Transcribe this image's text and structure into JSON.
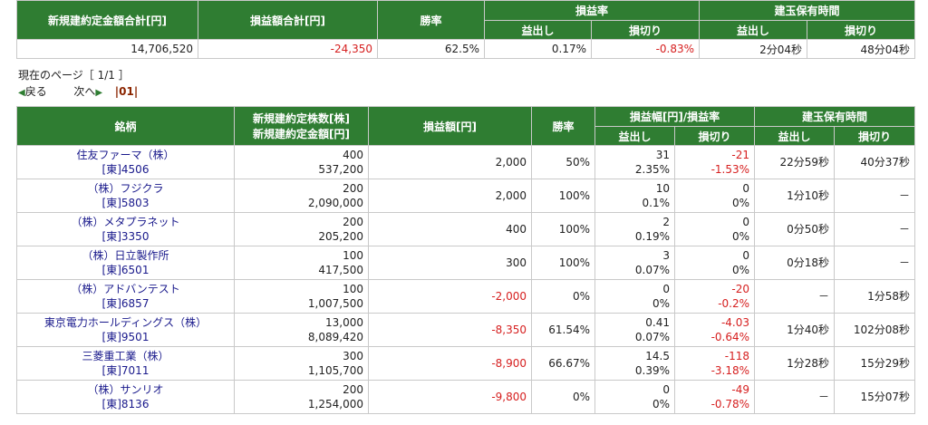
{
  "summary": {
    "headers": {
      "total_amount": "新規建約定金額合計[円]",
      "total_pl": "損益額合計[円]",
      "win_rate": "勝率",
      "pl_rate": "損益率",
      "hold_time": "建玉保有時間",
      "profit": "益出し",
      "loss": "損切り"
    },
    "values": {
      "total_amount": "14,706,520",
      "total_pl": "-24,350",
      "win_rate": "62.5%",
      "profit_rate": "0.17%",
      "loss_rate": "-0.83%",
      "profit_time": "2分04秒",
      "loss_time": "48分04秒"
    }
  },
  "pager": {
    "current_label": "現在のページ［ 1/1 ］",
    "prev": "戻る",
    "next": "次へ",
    "pages": "|01|"
  },
  "table": {
    "headers": {
      "stock": "銘柄",
      "qty": "新規建約定株数[株]",
      "amount": "新規建約定金額[円]",
      "pl": "損益額[円]",
      "win_rate": "勝率",
      "pl_range": "損益幅[円]/損益率",
      "hold_time": "建玉保有時間",
      "profit": "益出し",
      "loss": "損切り"
    },
    "rows": [
      {
        "name": "住友ファーマ（株）",
        "code": "[東]4506",
        "qty": "400",
        "amount": "537,200",
        "pl": "2,000",
        "pl_neg": false,
        "win": "50%",
        "profit_w": "31",
        "profit_r": "2.35%",
        "loss_w": "-21",
        "loss_r": "-1.53%",
        "loss_neg": true,
        "ptime": "22分59秒",
        "ltime": "40分37秒"
      },
      {
        "name": "（株）フジクラ",
        "code": "[東]5803",
        "qty": "200",
        "amount": "2,090,000",
        "pl": "2,000",
        "pl_neg": false,
        "win": "100%",
        "profit_w": "10",
        "profit_r": "0.1%",
        "loss_w": "0",
        "loss_r": "0%",
        "loss_neg": false,
        "ptime": "1分10秒",
        "ltime": "－"
      },
      {
        "name": "（株）メタプラネット",
        "code": "[東]3350",
        "qty": "200",
        "amount": "205,200",
        "pl": "400",
        "pl_neg": false,
        "win": "100%",
        "profit_w": "2",
        "profit_r": "0.19%",
        "loss_w": "0",
        "loss_r": "0%",
        "loss_neg": false,
        "ptime": "0分50秒",
        "ltime": "－"
      },
      {
        "name": "（株）日立製作所",
        "code": "[東]6501",
        "qty": "100",
        "amount": "417,500",
        "pl": "300",
        "pl_neg": false,
        "win": "100%",
        "profit_w": "3",
        "profit_r": "0.07%",
        "loss_w": "0",
        "loss_r": "0%",
        "loss_neg": false,
        "ptime": "0分18秒",
        "ltime": "－"
      },
      {
        "name": "（株）アドバンテスト",
        "code": "[東]6857",
        "qty": "100",
        "amount": "1,007,500",
        "pl": "-2,000",
        "pl_neg": true,
        "win": "0%",
        "profit_w": "0",
        "profit_r": "0%",
        "loss_w": "-20",
        "loss_r": "-0.2%",
        "loss_neg": true,
        "ptime": "－",
        "ltime": "1分58秒"
      },
      {
        "name": "東京電力ホールディングス（株）",
        "code": "[東]9501",
        "qty": "13,000",
        "amount": "8,089,420",
        "pl": "-8,350",
        "pl_neg": true,
        "win": "61.54%",
        "profit_w": "0.41",
        "profit_r": "0.07%",
        "loss_w": "-4.03",
        "loss_r": "-0.64%",
        "loss_neg": true,
        "ptime": "1分40秒",
        "ltime": "102分08秒"
      },
      {
        "name": "三菱重工業（株）",
        "code": "[東]7011",
        "qty": "300",
        "amount": "1,105,700",
        "pl": "-8,900",
        "pl_neg": true,
        "win": "66.67%",
        "profit_w": "14.5",
        "profit_r": "0.39%",
        "loss_w": "-118",
        "loss_r": "-3.18%",
        "loss_neg": true,
        "ptime": "1分28秒",
        "ltime": "15分29秒"
      },
      {
        "name": "（株）サンリオ",
        "code": "[東]8136",
        "qty": "200",
        "amount": "1,254,000",
        "pl": "-9,800",
        "pl_neg": true,
        "win": "0%",
        "profit_w": "0",
        "profit_r": "0%",
        "loss_w": "-49",
        "loss_r": "-0.78%",
        "loss_neg": true,
        "ptime": "－",
        "ltime": "15分07秒"
      }
    ]
  },
  "colors": {
    "header_green": "#2f7d32",
    "negative_red": "#d62020",
    "stock_name_blue": "#1a1a8c"
  }
}
